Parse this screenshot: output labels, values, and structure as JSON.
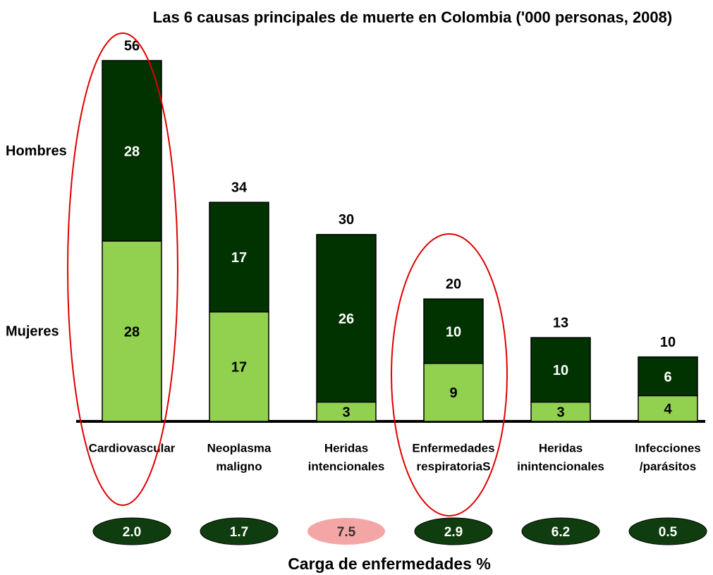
{
  "chart_data": {
    "type": "stacked_bar",
    "title": "Las 6 causas principales de muerte en Colombia ('000 personas, 2008)",
    "categories": [
      [
        "Cardiovascular"
      ],
      [
        "Neoplasma",
        "maligno"
      ],
      [
        "Heridas",
        "intencionales"
      ],
      [
        "Enfermedades",
        "respiratoriaS"
      ],
      [
        "Heridas",
        "inintencionales"
      ],
      [
        "Infecciones",
        "/parásitos"
      ]
    ],
    "series": [
      {
        "name": "Mujeres",
        "color": "#92d050",
        "label_color": "#000000",
        "values": [
          28,
          17,
          3,
          9,
          3,
          4
        ]
      },
      {
        "name": "Hombres",
        "color": "#003300",
        "label_color": "#ffffff",
        "values": [
          28,
          17,
          26,
          10,
          10,
          6
        ]
      }
    ],
    "totals": [
      56,
      34,
      30,
      20,
      13,
      10
    ],
    "ylim": [
      0,
      56
    ],
    "burden": {
      "label": "Carga de enfermedades %",
      "values": [
        2.0,
        1.7,
        7.5,
        2.9,
        6.2,
        0.5
      ],
      "value_labels": [
        "2.0",
        "1.7",
        "7.5",
        "2.9",
        "6.2",
        "0.5"
      ],
      "colors": [
        "#0f3d0f",
        "#0f3d0f",
        "#f4a6a6",
        "#0f3d0f",
        "#0f3d0f",
        "#0f3d0f"
      ]
    }
  }
}
